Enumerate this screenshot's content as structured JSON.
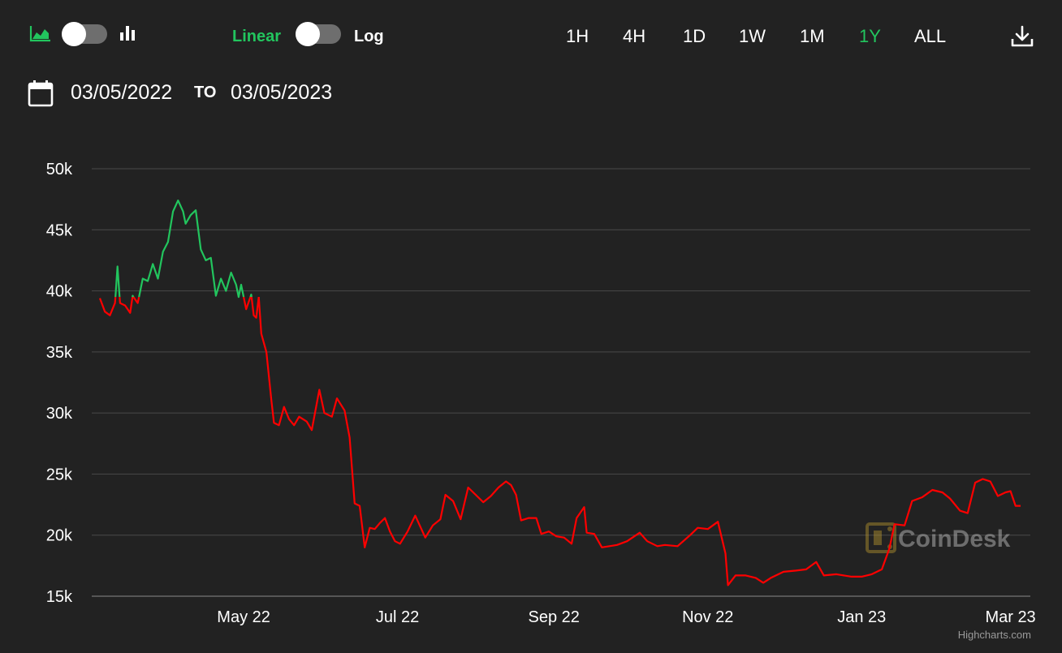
{
  "toolbar": {
    "chart_type_icons": [
      "area-chart-icon",
      "bar-chart-icon"
    ],
    "scale_linear": "Linear",
    "scale_log": "Log",
    "ranges": [
      "1H",
      "4H",
      "1D",
      "1W",
      "1M",
      "1Y",
      "ALL"
    ],
    "active_range": "1Y",
    "download_icon": "download-icon"
  },
  "date_range": {
    "from": "03/05/2022",
    "to_label": "TO",
    "to": "03/05/2023"
  },
  "watermark": "CoinDesk",
  "credits": "Highcharts.com",
  "colors": {
    "background": "#222222",
    "up": "#22c55e",
    "down": "#ff0000",
    "grid": "#4a4a4a",
    "accent": "#22c55e"
  },
  "chart_data": {
    "type": "line",
    "title": "",
    "xlabel": "",
    "ylabel": "",
    "y_ticks": [
      "15k",
      "20k",
      "25k",
      "30k",
      "35k",
      "40k",
      "45k",
      "50k"
    ],
    "ylim": [
      15000,
      50000
    ],
    "x_ticks": [
      "May 22",
      "Jul 22",
      "Sep 22",
      "Nov 22",
      "Jan 23",
      "Mar 23"
    ],
    "x_tick_dates": [
      "2022-05-01",
      "2022-07-01",
      "2022-09-01",
      "2022-11-01",
      "2023-01-01",
      "2023-03-01"
    ],
    "xlim": [
      "2022-03-05",
      "2023-03-05"
    ],
    "grid": true,
    "baseline": 39500,
    "color_above_baseline": "#22c55e",
    "color_below_baseline": "#ff0000",
    "series": [
      {
        "points": [
          [
            "2022-03-05",
            39400
          ],
          [
            "2022-03-07",
            38300
          ],
          [
            "2022-03-09",
            38000
          ],
          [
            "2022-03-11",
            39000
          ],
          [
            "2022-03-12",
            42000
          ],
          [
            "2022-03-13",
            39000
          ],
          [
            "2022-03-15",
            38800
          ],
          [
            "2022-03-17",
            38200
          ],
          [
            "2022-03-18",
            39600
          ],
          [
            "2022-03-20",
            39000
          ],
          [
            "2022-03-22",
            41000
          ],
          [
            "2022-03-24",
            40800
          ],
          [
            "2022-03-26",
            42200
          ],
          [
            "2022-03-28",
            41000
          ],
          [
            "2022-03-30",
            43200
          ],
          [
            "2022-04-01",
            44000
          ],
          [
            "2022-04-03",
            46500
          ],
          [
            "2022-04-05",
            47400
          ],
          [
            "2022-04-07",
            46500
          ],
          [
            "2022-04-08",
            45500
          ],
          [
            "2022-04-10",
            46200
          ],
          [
            "2022-04-12",
            46600
          ],
          [
            "2022-04-14",
            43400
          ],
          [
            "2022-04-16",
            42500
          ],
          [
            "2022-04-18",
            42700
          ],
          [
            "2022-04-20",
            39600
          ],
          [
            "2022-04-22",
            41000
          ],
          [
            "2022-04-24",
            40000
          ],
          [
            "2022-04-26",
            41500
          ],
          [
            "2022-04-28",
            40500
          ],
          [
            "2022-04-29",
            39500
          ],
          [
            "2022-04-30",
            40500
          ],
          [
            "2022-05-02",
            38500
          ],
          [
            "2022-05-04",
            39700
          ],
          [
            "2022-05-05",
            38000
          ],
          [
            "2022-05-06",
            37800
          ],
          [
            "2022-05-07",
            39500
          ],
          [
            "2022-05-08",
            36500
          ],
          [
            "2022-05-10",
            35000
          ],
          [
            "2022-05-12",
            31000
          ],
          [
            "2022-05-13",
            29200
          ],
          [
            "2022-05-15",
            29000
          ],
          [
            "2022-05-17",
            30500
          ],
          [
            "2022-05-19",
            29500
          ],
          [
            "2022-05-21",
            29000
          ],
          [
            "2022-05-23",
            29700
          ],
          [
            "2022-05-26",
            29300
          ],
          [
            "2022-05-28",
            28600
          ],
          [
            "2022-05-31",
            31900
          ],
          [
            "2022-06-02",
            30000
          ],
          [
            "2022-06-05",
            29700
          ],
          [
            "2022-06-07",
            31200
          ],
          [
            "2022-06-10",
            30200
          ],
          [
            "2022-06-12",
            28000
          ],
          [
            "2022-06-14",
            22600
          ],
          [
            "2022-06-16",
            22400
          ],
          [
            "2022-06-18",
            19000
          ],
          [
            "2022-06-20",
            20600
          ],
          [
            "2022-06-22",
            20500
          ],
          [
            "2022-06-24",
            21000
          ],
          [
            "2022-06-26",
            21400
          ],
          [
            "2022-06-28",
            20300
          ],
          [
            "2022-06-30",
            19500
          ],
          [
            "2022-07-02",
            19300
          ],
          [
            "2022-07-05",
            20300
          ],
          [
            "2022-07-08",
            21600
          ],
          [
            "2022-07-12",
            19800
          ],
          [
            "2022-07-15",
            20800
          ],
          [
            "2022-07-18",
            21300
          ],
          [
            "2022-07-20",
            23300
          ],
          [
            "2022-07-23",
            22800
          ],
          [
            "2022-07-26",
            21300
          ],
          [
            "2022-07-29",
            23900
          ],
          [
            "2022-08-01",
            23300
          ],
          [
            "2022-08-04",
            22700
          ],
          [
            "2022-08-07",
            23200
          ],
          [
            "2022-08-10",
            23900
          ],
          [
            "2022-08-13",
            24400
          ],
          [
            "2022-08-15",
            24100
          ],
          [
            "2022-08-17",
            23300
          ],
          [
            "2022-08-19",
            21200
          ],
          [
            "2022-08-22",
            21400
          ],
          [
            "2022-08-25",
            21400
          ],
          [
            "2022-08-27",
            20100
          ],
          [
            "2022-08-30",
            20300
          ],
          [
            "2022-09-02",
            19900
          ],
          [
            "2022-09-05",
            19800
          ],
          [
            "2022-09-08",
            19300
          ],
          [
            "2022-09-10",
            21400
          ],
          [
            "2022-09-13",
            22300
          ],
          [
            "2022-09-14",
            20200
          ],
          [
            "2022-09-17",
            20100
          ],
          [
            "2022-09-20",
            19000
          ],
          [
            "2022-09-23",
            19100
          ],
          [
            "2022-09-26",
            19200
          ],
          [
            "2022-09-30",
            19500
          ],
          [
            "2022-10-05",
            20200
          ],
          [
            "2022-10-08",
            19500
          ],
          [
            "2022-10-12",
            19100
          ],
          [
            "2022-10-15",
            19200
          ],
          [
            "2022-10-20",
            19100
          ],
          [
            "2022-10-25",
            20000
          ],
          [
            "2022-10-28",
            20600
          ],
          [
            "2022-11-01",
            20500
          ],
          [
            "2022-11-05",
            21100
          ],
          [
            "2022-11-08",
            18500
          ],
          [
            "2022-11-09",
            15900
          ],
          [
            "2022-11-12",
            16700
          ],
          [
            "2022-11-16",
            16700
          ],
          [
            "2022-11-20",
            16500
          ],
          [
            "2022-11-23",
            16100
          ],
          [
            "2022-11-26",
            16500
          ],
          [
            "2022-12-01",
            17000
          ],
          [
            "2022-12-06",
            17100
          ],
          [
            "2022-12-10",
            17200
          ],
          [
            "2022-12-14",
            17800
          ],
          [
            "2022-12-17",
            16700
          ],
          [
            "2022-12-22",
            16800
          ],
          [
            "2022-12-28",
            16600
          ],
          [
            "2023-01-01",
            16600
          ],
          [
            "2023-01-05",
            16800
          ],
          [
            "2023-01-09",
            17200
          ],
          [
            "2023-01-12",
            18900
          ],
          [
            "2023-01-14",
            20900
          ],
          [
            "2023-01-18",
            20800
          ],
          [
            "2023-01-21",
            22800
          ],
          [
            "2023-01-25",
            23100
          ],
          [
            "2023-01-29",
            23700
          ],
          [
            "2023-02-02",
            23500
          ],
          [
            "2023-02-05",
            23000
          ],
          [
            "2023-02-09",
            22000
          ],
          [
            "2023-02-12",
            21800
          ],
          [
            "2023-02-15",
            24300
          ],
          [
            "2023-02-18",
            24600
          ],
          [
            "2023-02-21",
            24400
          ],
          [
            "2023-02-24",
            23200
          ],
          [
            "2023-02-27",
            23500
          ],
          [
            "2023-03-01",
            23600
          ],
          [
            "2023-03-03",
            22400
          ],
          [
            "2023-03-05",
            22400
          ]
        ]
      }
    ]
  }
}
